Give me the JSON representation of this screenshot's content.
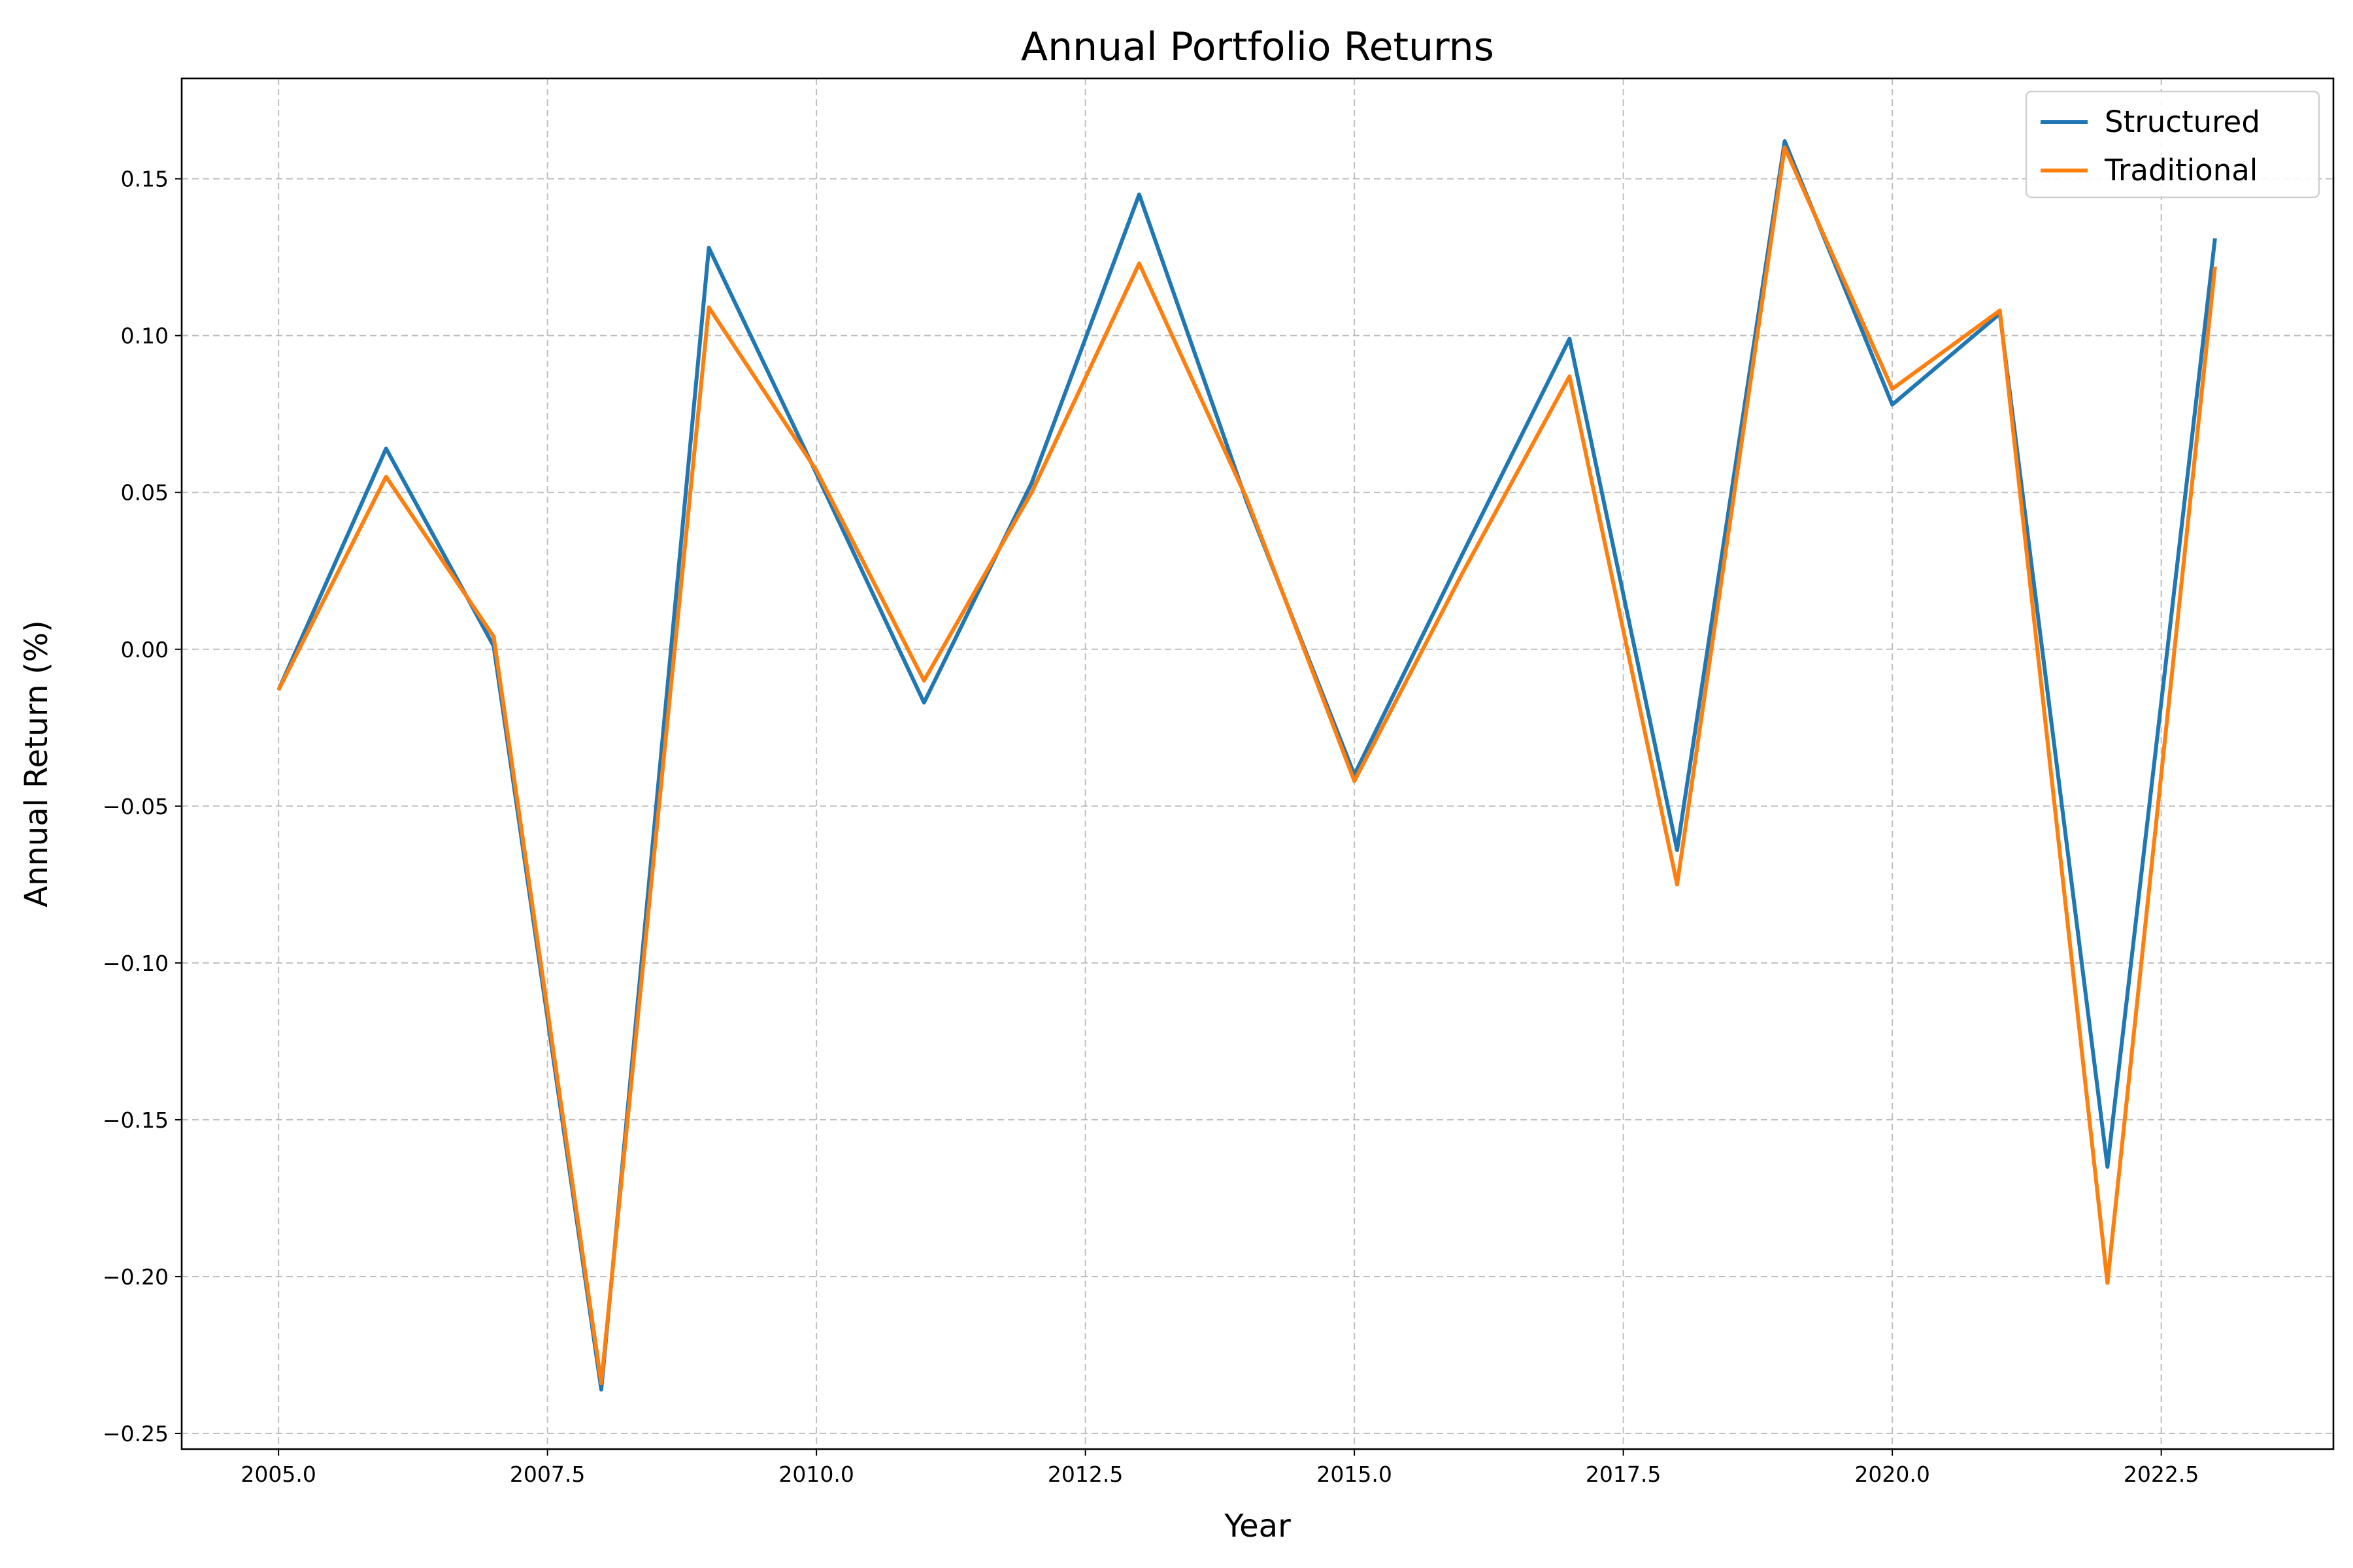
{
  "chart_data": {
    "type": "line",
    "title": "Annual Portfolio Returns",
    "xlabel": "Year",
    "ylabel": "Annual Return (%)",
    "xlim": [
      2004.1,
      2024.1
    ],
    "ylim": [
      -0.255,
      0.182
    ],
    "xticks": [
      2005.0,
      2007.5,
      2010.0,
      2012.5,
      2015.0,
      2017.5,
      2020.0,
      2022.5
    ],
    "xtick_labels": [
      "2005.0",
      "2007.5",
      "2010.0",
      "2012.5",
      "2015.0",
      "2017.5",
      "2020.0",
      "2022.5"
    ],
    "yticks": [
      -0.25,
      -0.2,
      -0.15,
      -0.1,
      -0.05,
      0.0,
      0.05,
      0.1,
      0.15
    ],
    "ytick_labels": [
      "−0.25",
      "−0.20",
      "−0.15",
      "−0.10",
      "−0.05",
      "0.00",
      "0.05",
      "0.10",
      "0.15"
    ],
    "grid": true,
    "legend_position": "top-right",
    "x": [
      2005,
      2006,
      2007,
      2008,
      2009,
      2010,
      2011,
      2012,
      2013,
      2014,
      2015,
      2016,
      2017,
      2018,
      2019,
      2020,
      2021,
      2022,
      2023
    ],
    "series": [
      {
        "name": "Structured",
        "color": "#1f77b4",
        "values": [
          -0.013,
          0.064,
          0.001,
          -0.236,
          0.128,
          0.056,
          -0.017,
          0.053,
          0.145,
          0.047,
          -0.04,
          0.03,
          0.099,
          -0.064,
          0.162,
          0.078,
          0.107,
          -0.165,
          0.131
        ]
      },
      {
        "name": "Traditional",
        "color": "#ff7f0e",
        "values": [
          -0.013,
          0.055,
          0.004,
          -0.234,
          0.109,
          0.057,
          -0.01,
          0.05,
          0.123,
          0.048,
          -0.042,
          0.024,
          0.087,
          -0.075,
          0.16,
          0.083,
          0.108,
          -0.202,
          0.122
        ]
      }
    ]
  }
}
